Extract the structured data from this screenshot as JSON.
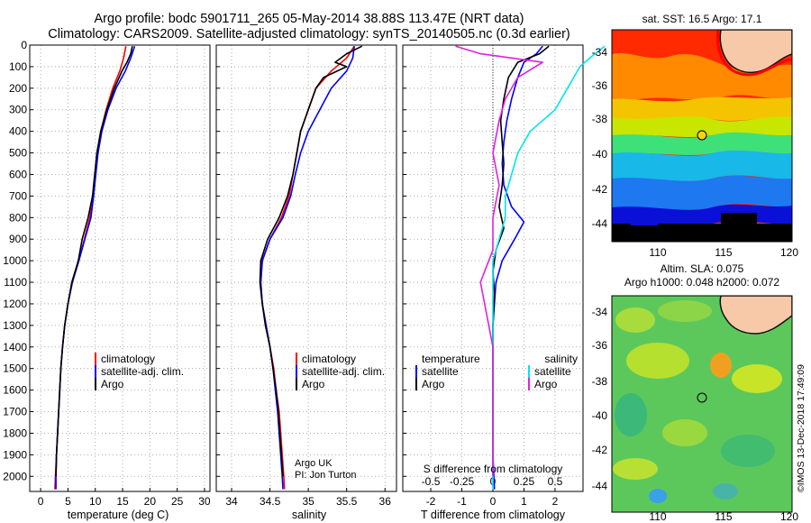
{
  "title": {
    "line1": "Argo profile: bodc 5901711_265 05-May-2014 38.88S 113.47E (NRT data)",
    "line2": "Climatology: CARS2009. Satellite-adjusted climatology: synTS_20140505.nc (0.3d earlier)"
  },
  "colors": {
    "climatology": "#ff0000",
    "satellite": "#0000ff",
    "argo": "#000000",
    "sal_satellite": "#00e5ee",
    "sal_argo": "#e020e0"
  },
  "chart_data": [
    {
      "type": "line",
      "xlabel": "temperature (deg C)",
      "ylabel": "",
      "xlim": [
        -2,
        31
      ],
      "ylim": [
        2070,
        0
      ],
      "xticks": [
        0,
        5,
        10,
        15,
        20,
        25,
        30
      ],
      "yticks": [
        0,
        100,
        200,
        300,
        400,
        500,
        600,
        700,
        800,
        900,
        1000,
        1100,
        1200,
        1300,
        1400,
        1500,
        1600,
        1700,
        1800,
        1900,
        2000
      ],
      "grid": true,
      "legend": {
        "placement": "lower-middle",
        "labels": [
          "climatology",
          "satellite-adj. clim.",
          "Argo"
        ]
      },
      "series": [
        {
          "name": "climatology",
          "color": "#ff0000",
          "points": [
            [
              15.6,
              5
            ],
            [
              15.2,
              60
            ],
            [
              14.5,
              120
            ],
            [
              13.2,
              200
            ],
            [
              12.0,
              300
            ],
            [
              11.0,
              400
            ],
            [
              10.4,
              500
            ],
            [
              10.0,
              600
            ],
            [
              9.6,
              700
            ],
            [
              9.0,
              800
            ],
            [
              8.0,
              900
            ],
            [
              7.0,
              1000
            ],
            [
              5.8,
              1100
            ],
            [
              5.0,
              1200
            ],
            [
              4.4,
              1300
            ],
            [
              4.0,
              1400
            ],
            [
              3.7,
              1500
            ],
            [
              3.5,
              1600
            ],
            [
              3.3,
              1700
            ],
            [
              3.1,
              1800
            ],
            [
              2.9,
              1900
            ],
            [
              2.7,
              2000
            ],
            [
              2.6,
              2060
            ]
          ]
        },
        {
          "name": "satellite-adj. clim.",
          "color": "#0000ff",
          "points": [
            [
              17.2,
              5
            ],
            [
              16.5,
              60
            ],
            [
              15.5,
              120
            ],
            [
              13.8,
              200
            ],
            [
              12.3,
              300
            ],
            [
              11.2,
              400
            ],
            [
              10.5,
              500
            ],
            [
              10.1,
              600
            ],
            [
              9.7,
              700
            ],
            [
              9.2,
              800
            ],
            [
              8.1,
              900
            ],
            [
              7.0,
              1000
            ],
            [
              5.8,
              1100
            ],
            [
              5.0,
              1200
            ],
            [
              4.4,
              1300
            ],
            [
              4.0,
              1400
            ],
            [
              3.7,
              1500
            ],
            [
              3.5,
              1600
            ],
            [
              3.3,
              1700
            ],
            [
              3.1,
              1800
            ],
            [
              2.9,
              1900
            ],
            [
              2.8,
              2000
            ],
            [
              2.8,
              2060
            ]
          ]
        },
        {
          "name": "Argo",
          "color": "#000000",
          "points": [
            [
              16.8,
              5
            ],
            [
              16.5,
              40
            ],
            [
              15.8,
              80
            ],
            [
              14.9,
              120
            ],
            [
              13.5,
              200
            ],
            [
              12.1,
              300
            ],
            [
              11.0,
              400
            ],
            [
              10.3,
              500
            ],
            [
              9.9,
              600
            ],
            [
              9.5,
              700
            ],
            [
              8.7,
              800
            ],
            [
              7.6,
              900
            ],
            [
              6.9,
              1000
            ],
            [
              5.7,
              1100
            ],
            [
              5.0,
              1200
            ],
            [
              4.4,
              1300
            ],
            [
              4.0,
              1400
            ],
            [
              3.7,
              1500
            ],
            [
              3.5,
              1600
            ],
            [
              3.3,
              1700
            ],
            [
              3.1,
              1800
            ],
            [
              2.9,
              1900
            ],
            [
              2.8,
              2000
            ]
          ]
        }
      ]
    },
    {
      "type": "line",
      "xlabel": "salinity",
      "ylabel": "",
      "xlim": [
        33.8,
        36.15
      ],
      "ylim": [
        2070,
        0
      ],
      "xticks": [
        34,
        34.5,
        35,
        35.5,
        36
      ],
      "grid": true,
      "legend": {
        "placement": "lower-right",
        "labels": [
          "climatology",
          "satellite-adj. clim.",
          "Argo"
        ]
      },
      "annotation": [
        "Argo UK",
        "PI: Jon Turton"
      ],
      "series": [
        {
          "name": "climatology",
          "color": "#ff0000",
          "points": [
            [
              35.6,
              5
            ],
            [
              35.5,
              60
            ],
            [
              35.3,
              120
            ],
            [
              35.1,
              200
            ],
            [
              35.0,
              300
            ],
            [
              34.9,
              400
            ],
            [
              34.85,
              500
            ],
            [
              34.8,
              600
            ],
            [
              34.75,
              700
            ],
            [
              34.65,
              800
            ],
            [
              34.5,
              900
            ],
            [
              34.4,
              1000
            ],
            [
              34.38,
              1100
            ],
            [
              34.4,
              1200
            ],
            [
              34.45,
              1300
            ],
            [
              34.5,
              1400
            ],
            [
              34.55,
              1500
            ],
            [
              34.58,
              1600
            ],
            [
              34.62,
              1700
            ],
            [
              34.64,
              1800
            ],
            [
              34.66,
              1900
            ],
            [
              34.68,
              2000
            ],
            [
              34.69,
              2060
            ]
          ]
        },
        {
          "name": "satellite-adj. clim.",
          "color": "#0000ff",
          "points": [
            [
              35.6,
              5
            ],
            [
              35.58,
              60
            ],
            [
              35.5,
              120
            ],
            [
              35.3,
              200
            ],
            [
              35.15,
              300
            ],
            [
              35.0,
              400
            ],
            [
              34.9,
              500
            ],
            [
              34.83,
              600
            ],
            [
              34.77,
              700
            ],
            [
              34.67,
              800
            ],
            [
              34.5,
              900
            ],
            [
              34.4,
              1000
            ],
            [
              34.38,
              1100
            ],
            [
              34.4,
              1200
            ],
            [
              34.45,
              1300
            ],
            [
              34.5,
              1400
            ],
            [
              34.54,
              1500
            ],
            [
              34.57,
              1600
            ],
            [
              34.6,
              1700
            ],
            [
              34.62,
              1800
            ],
            [
              34.64,
              1900
            ],
            [
              34.66,
              2000
            ],
            [
              34.67,
              2060
            ]
          ]
        },
        {
          "name": "Argo",
          "color": "#000000",
          "points": [
            [
              35.7,
              5
            ],
            [
              35.5,
              40
            ],
            [
              35.35,
              80
            ],
            [
              35.5,
              100
            ],
            [
              35.2,
              150
            ],
            [
              35.1,
              200
            ],
            [
              35.0,
              300
            ],
            [
              34.9,
              400
            ],
            [
              34.85,
              500
            ],
            [
              34.8,
              600
            ],
            [
              34.73,
              700
            ],
            [
              34.62,
              800
            ],
            [
              34.47,
              900
            ],
            [
              34.38,
              1000
            ],
            [
              34.37,
              1100
            ],
            [
              34.4,
              1200
            ],
            [
              34.44,
              1300
            ],
            [
              34.5,
              1400
            ],
            [
              34.54,
              1500
            ],
            [
              34.58,
              1600
            ],
            [
              34.61,
              1700
            ],
            [
              34.63,
              1800
            ],
            [
              34.65,
              1900
            ],
            [
              34.67,
              2000
            ]
          ]
        }
      ]
    },
    {
      "type": "line",
      "xlabel": "T difference from climatology",
      "top_axis_label": "S difference from climatology",
      "xlim": [
        -2.9,
        2.9
      ],
      "ylim": [
        2070,
        0
      ],
      "xticks": [
        -2,
        -1,
        0,
        1,
        2
      ],
      "top_ticks": [
        {
          "label": "-0.5",
          "value": -0.5
        },
        {
          "label": "-0.25",
          "value": -0.25
        },
        {
          "label": "0",
          "value": 0
        },
        {
          "label": "0.25",
          "value": 0.25
        },
        {
          "label": "0.5",
          "value": 0.5
        }
      ],
      "grid": true,
      "legend": {
        "placement": "lower",
        "temperature_title": "temperature",
        "salinity_title": "salinity",
        "labels": [
          "satellite",
          "Argo",
          "satellite",
          "Argo"
        ]
      },
      "series": [
        {
          "name": "satellite",
          "group": "temperature",
          "color": "#0000ff",
          "points": [
            [
              1.6,
              5
            ],
            [
              1.4,
              40
            ],
            [
              1.0,
              80
            ],
            [
              0.8,
              150
            ],
            [
              0.6,
              250
            ],
            [
              0.45,
              350
            ],
            [
              0.35,
              450
            ],
            [
              0.3,
              550
            ],
            [
              0.35,
              650
            ],
            [
              0.6,
              750
            ],
            [
              1.0,
              820
            ],
            [
              0.7,
              900
            ],
            [
              0.3,
              1000
            ],
            [
              0.1,
              1100
            ],
            [
              0.05,
              1200
            ],
            [
              0.0,
              1300
            ],
            [
              0.0,
              1500
            ],
            [
              0.0,
              1700
            ],
            [
              0.0,
              1900
            ],
            [
              0.05,
              2060
            ]
          ]
        },
        {
          "name": "Argo",
          "group": "temperature",
          "color": "#000000",
          "points": [
            [
              1.8,
              5
            ],
            [
              1.5,
              40
            ],
            [
              0.8,
              80
            ],
            [
              0.5,
              150
            ],
            [
              0.35,
              250
            ],
            [
              0.25,
              350
            ],
            [
              0.3,
              450
            ],
            [
              0.35,
              550
            ],
            [
              0.3,
              650
            ],
            [
              0.2,
              750
            ],
            [
              0.35,
              850
            ],
            [
              0.1,
              950
            ],
            [
              0.0,
              1050
            ],
            [
              0.05,
              1150
            ],
            [
              0.0,
              1300
            ],
            [
              0.0,
              1500
            ],
            [
              0.0,
              1700
            ],
            [
              0.0,
              1900
            ],
            [
              0.0,
              2000
            ]
          ]
        },
        {
          "name": "satellite",
          "group": "salinity",
          "color": "#00e5ee",
          "points": [
            [
              0.9,
              5
            ],
            [
              0.8,
              50
            ],
            [
              0.7,
              100
            ],
            [
              0.6,
              200
            ],
            [
              0.5,
              300
            ],
            [
              0.3,
              400
            ],
            [
              0.2,
              500
            ],
            [
              0.15,
              600
            ],
            [
              0.1,
              700
            ],
            [
              0.1,
              800
            ],
            [
              0.05,
              900
            ],
            [
              0.0,
              1000
            ],
            [
              0.0,
              1200
            ],
            [
              0.0,
              1400
            ],
            [
              0.0,
              1600
            ],
            [
              0.0,
              1800
            ],
            [
              0.0,
              2060
            ]
          ]
        },
        {
          "name": "Argo",
          "group": "salinity",
          "color": "#e020e0",
          "points": [
            [
              -0.3,
              5
            ],
            [
              -0.1,
              40
            ],
            [
              0.4,
              80
            ],
            [
              0.2,
              150
            ],
            [
              0.1,
              250
            ],
            [
              0.05,
              350
            ],
            [
              0.0,
              500
            ],
            [
              0.05,
              650
            ],
            [
              0.0,
              800
            ],
            [
              0.0,
              950
            ],
            [
              -0.1,
              1100
            ],
            [
              -0.05,
              1250
            ],
            [
              0.0,
              1400
            ],
            [
              0.0,
              1600
            ],
            [
              0.0,
              1800
            ],
            [
              0.0,
              2000
            ]
          ]
        }
      ]
    }
  ],
  "maps": {
    "sst": {
      "title": "sat. SST: 16.5 Argo: 17.1",
      "xticks": [
        "110",
        "115",
        "120"
      ],
      "yticks": [
        "-34",
        "-36",
        "-38",
        "-40",
        "-42",
        "-44"
      ]
    },
    "sla": {
      "title1": "Altim. SLA: 0.075",
      "title2": "Argo h1000: 0.048 h2000: 0.072",
      "xticks": [
        "110",
        "115",
        "120"
      ],
      "yticks": [
        "-34",
        "-36",
        "-38",
        "-40",
        "-42",
        "-44"
      ]
    }
  },
  "credit": "©IMOS 13-Dec-2018 17:49:09"
}
